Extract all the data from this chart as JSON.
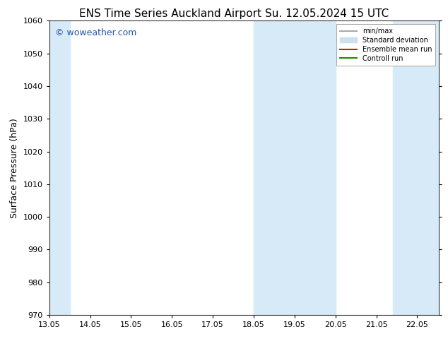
{
  "title_left": "ENS Time Series Auckland Airport",
  "title_right": "Su. 12.05.2024 15 UTC",
  "ylabel": "Surface Pressure (hPa)",
  "xlim": [
    13.05,
    22.583
  ],
  "ylim": [
    970,
    1060
  ],
  "yticks": [
    970,
    980,
    990,
    1000,
    1010,
    1020,
    1030,
    1040,
    1050,
    1060
  ],
  "xtick_labels": [
    "13.05",
    "14.05",
    "15.05",
    "16.05",
    "17.05",
    "18.05",
    "19.05",
    "20.05",
    "21.05",
    "22.05"
  ],
  "xtick_positions": [
    13.05,
    14.05,
    15.05,
    16.05,
    17.05,
    18.05,
    19.05,
    20.05,
    21.05,
    22.05
  ],
  "shaded_regions": [
    {
      "xmin": 13.05,
      "xmax": 13.55,
      "color": "#d6eaf8"
    },
    {
      "xmin": 18.05,
      "xmax": 20.05,
      "color": "#d6eaf8"
    },
    {
      "xmin": 21.45,
      "xmax": 22.583,
      "color": "#d6eaf8"
    }
  ],
  "watermark": "© woweather.com",
  "watermark_color": "#2255aa",
  "legend_entries": [
    {
      "label": "min/max",
      "color": "#aaaaaa",
      "type": "line",
      "linewidth": 1.5
    },
    {
      "label": "Standard deviation",
      "color": "#cce0f0",
      "type": "patch"
    },
    {
      "label": "Ensemble mean run",
      "color": "#cc2200",
      "type": "line",
      "linewidth": 1.5
    },
    {
      "label": "Controll run",
      "color": "#228800",
      "type": "line",
      "linewidth": 1.5
    }
  ],
  "bg_color": "#ffffff",
  "plot_bg_color": "#ffffff",
  "title_fontsize": 11,
  "tick_fontsize": 8,
  "ylabel_fontsize": 9,
  "watermark_fontsize": 9
}
